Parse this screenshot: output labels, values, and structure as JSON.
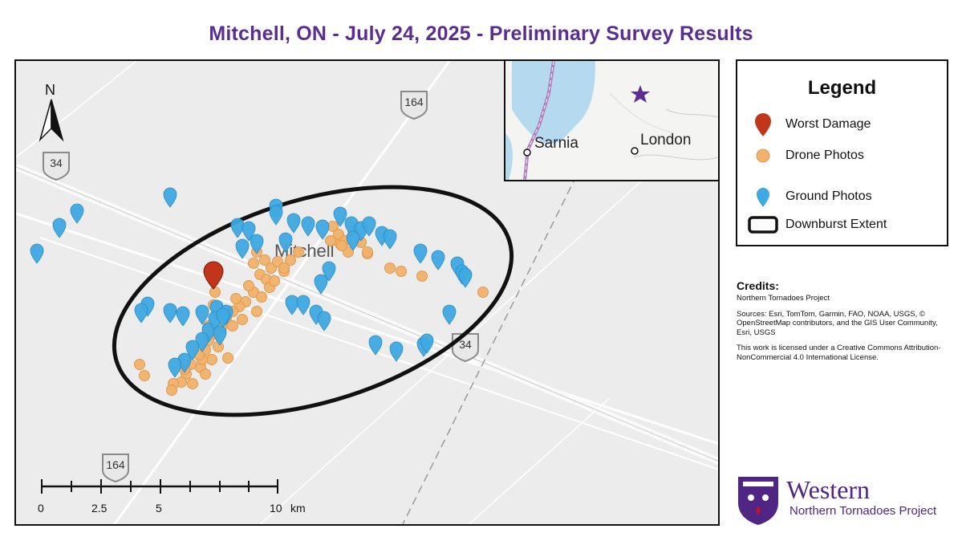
{
  "title": "Mitchell, ON - July 24, 2025 - Preliminary Survey Results",
  "map": {
    "north_label": "N",
    "town_label": "Mitchell",
    "highways": [
      {
        "label": "164"
      },
      {
        "label": "34"
      },
      {
        "label": "34"
      },
      {
        "label": "164"
      }
    ],
    "scale_labels": [
      "0",
      "2.5",
      "5",
      "10"
    ],
    "scale_unit": "km",
    "colors": {
      "worst_damage": "#c1361b",
      "drone": "#f2b26a",
      "ground": "#3fa9e2",
      "downburst": "#111111",
      "accent": "#5b2d90"
    }
  },
  "inset": {
    "labels": [
      "Sarnia",
      "London"
    ],
    "star_icon": "star-icon"
  },
  "legend": {
    "title": "Legend",
    "items": [
      {
        "label": "Worst Damage",
        "icon": "red-pin-icon"
      },
      {
        "label": "Drone Photos",
        "icon": "orange-dot-icon"
      },
      {
        "label": "Ground Photos",
        "icon": "blue-pin-icon"
      },
      {
        "label": "Downburst Extent",
        "icon": "rounded-rect-icon"
      }
    ]
  },
  "credits": {
    "title": "Credits:",
    "author": "Northern Tornadoes Project",
    "sources": "Sources: Esri, TomTom, Garmin, FAO, NOAA, USGS, © OpenStreetMap contributors, and the GIS User Community, Esri, USGS",
    "license": "This work is licensed under a Creative Commons Attribution-NonCommercial 4.0 International License."
  },
  "logo": {
    "name": "Western",
    "subtitle": "Northern Tornadoes Project"
  }
}
